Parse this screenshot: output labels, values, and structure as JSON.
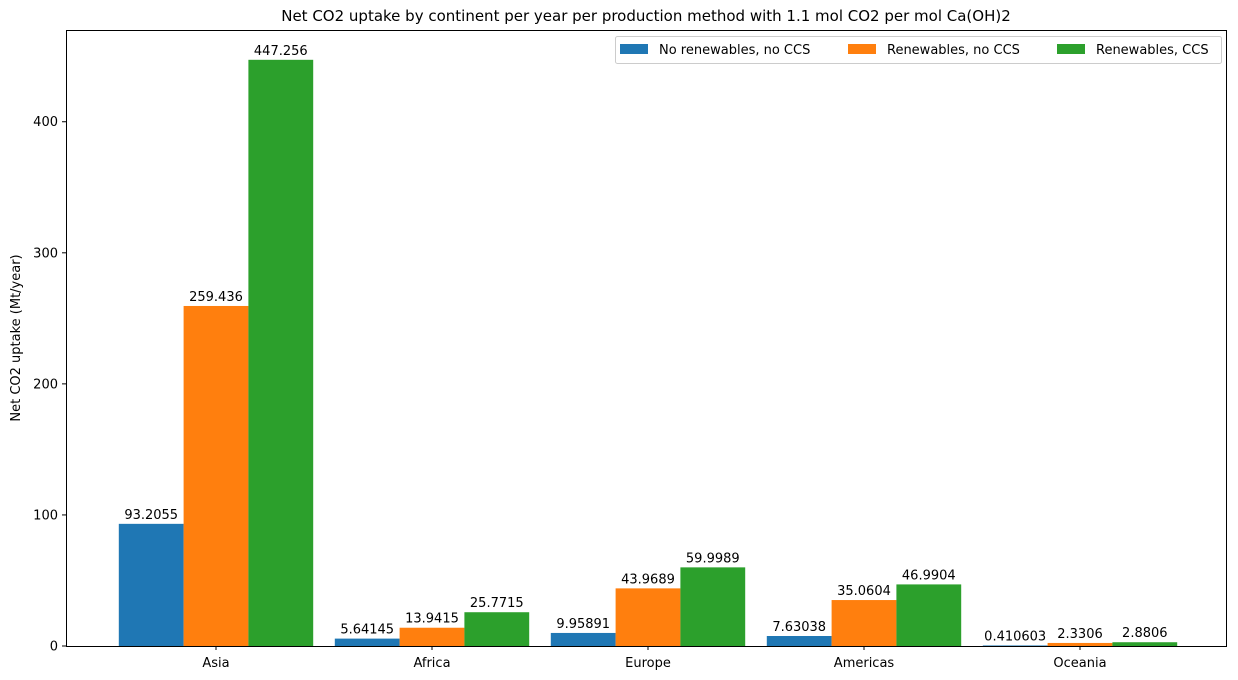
{
  "chart_data": {
    "type": "bar",
    "title": "Net CO2 uptake by continent per year per production method with 1.1 mol CO2 per mol Ca(OH)2",
    "xlabel": "",
    "ylabel": "Net CO2 uptake (Mt/year)",
    "ylim": [
      0,
      470
    ],
    "yticks": [
      0,
      100,
      200,
      300,
      400
    ],
    "grid": false,
    "legend_position": "top-right",
    "categories": [
      "Asia",
      "Africa",
      "Europe",
      "Americas",
      "Oceania"
    ],
    "series": [
      {
        "name": "No renewables, no CCS",
        "color": "#1f77b4",
        "values": [
          93.2055,
          5.64145,
          9.95891,
          7.63038,
          0.410603
        ],
        "labels": [
          "93.2055",
          "5.64145",
          "9.95891",
          "7.63038",
          "0.410603"
        ]
      },
      {
        "name": "Renewables, no CCS",
        "color": "#ff7f0e",
        "values": [
          259.436,
          13.9415,
          43.9689,
          35.0604,
          2.3306
        ],
        "labels": [
          "259.436",
          "13.9415",
          "43.9689",
          "35.0604",
          "2.3306"
        ]
      },
      {
        "name": "Renewables, CCS",
        "color": "#2ca02c",
        "values": [
          447.256,
          25.7715,
          59.9989,
          46.9904,
          2.8806
        ],
        "labels": [
          "447.256",
          "25.7715",
          "59.9989",
          "46.9904",
          "2.8806"
        ]
      }
    ]
  }
}
